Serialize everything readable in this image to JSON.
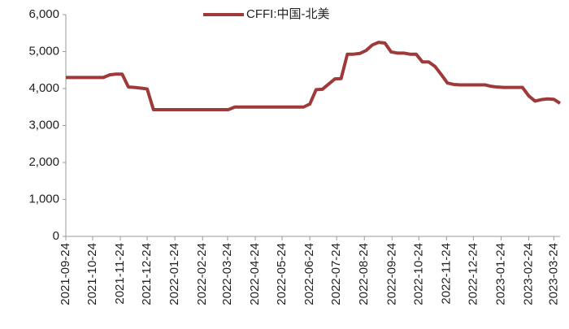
{
  "chart_data": {
    "type": "line",
    "x": [
      "2021-09-24",
      "2021-10-01",
      "2021-10-08",
      "2021-10-15",
      "2021-10-22",
      "2021-10-29",
      "2021-11-05",
      "2021-11-12",
      "2021-11-19",
      "2021-11-26",
      "2021-12-03",
      "2021-12-10",
      "2021-12-17",
      "2021-12-24",
      "2021-12-31",
      "2022-01-07",
      "2022-01-14",
      "2022-01-21",
      "2022-01-28",
      "2022-02-04",
      "2022-02-11",
      "2022-02-18",
      "2022-02-25",
      "2022-03-04",
      "2022-03-11",
      "2022-03-18",
      "2022-03-25",
      "2022-04-01",
      "2022-04-08",
      "2022-04-15",
      "2022-04-22",
      "2022-04-29",
      "2022-05-06",
      "2022-05-13",
      "2022-05-20",
      "2022-05-27",
      "2022-06-03",
      "2022-06-10",
      "2022-06-17",
      "2022-06-24",
      "2022-07-01",
      "2022-07-08",
      "2022-07-15",
      "2022-07-22",
      "2022-07-29",
      "2022-08-05",
      "2022-08-12",
      "2022-08-19",
      "2022-08-26",
      "2022-09-02",
      "2022-09-09",
      "2022-09-16",
      "2022-09-23",
      "2022-09-30",
      "2022-10-07",
      "2022-10-14",
      "2022-10-21",
      "2022-10-28",
      "2022-11-04",
      "2022-11-11",
      "2022-11-18",
      "2022-11-25",
      "2022-12-02",
      "2022-12-09",
      "2022-12-16",
      "2022-12-23",
      "2022-12-30",
      "2023-01-06",
      "2023-01-13",
      "2023-01-20",
      "2023-01-27",
      "2023-02-03",
      "2023-02-10",
      "2023-02-17",
      "2023-02-24",
      "2023-03-03",
      "2023-03-10",
      "2023-03-17",
      "2023-03-24",
      "2023-03-31"
    ],
    "series": [
      {
        "name": "CFFI:中国-北美",
        "color": "#9e3a3a",
        "values": [
          4300,
          4300,
          4300,
          4300,
          4300,
          4300,
          4300,
          4370,
          4390,
          4390,
          4040,
          4030,
          4010,
          3990,
          3430,
          3430,
          3430,
          3430,
          3430,
          3430,
          3430,
          3430,
          3430,
          3430,
          3430,
          3430,
          3430,
          3500,
          3500,
          3500,
          3500,
          3500,
          3500,
          3500,
          3500,
          3500,
          3500,
          3500,
          3500,
          3580,
          3970,
          3980,
          4120,
          4260,
          4270,
          4930,
          4930,
          4950,
          5030,
          5180,
          5250,
          5230,
          4990,
          4960,
          4960,
          4930,
          4930,
          4720,
          4720,
          4600,
          4380,
          4150,
          4110,
          4100,
          4100,
          4100,
          4100,
          4100,
          4060,
          4040,
          4030,
          4030,
          4030,
          4030,
          3800,
          3660,
          3700,
          3720,
          3710,
          3600
        ]
      }
    ],
    "xlim": [
      "2021-09-24",
      "2023-03-31"
    ],
    "xticks": [
      "2021-09-24",
      "2021-10-24",
      "2021-11-24",
      "2021-12-24",
      "2022-01-24",
      "2022-02-24",
      "2022-03-24",
      "2022-04-24",
      "2022-05-24",
      "2022-06-24",
      "2022-07-24",
      "2022-08-24",
      "2022-09-24",
      "2022-10-24",
      "2022-11-24",
      "2022-12-24",
      "2023-01-24",
      "2023-02-24",
      "2023-03-24"
    ],
    "ylim": [
      0,
      6000
    ],
    "yticks": [
      0,
      {
        "value": 1000,
        "label": "1,000"
      },
      {
        "value": 2000,
        "label": "2,000"
      },
      {
        "value": 3000,
        "label": "3,000"
      },
      {
        "value": 4000,
        "label": "4,000"
      },
      {
        "value": 5000,
        "label": "5,000"
      },
      {
        "value": 6000,
        "label": "6,000"
      }
    ],
    "grid": false,
    "legend": "top"
  }
}
